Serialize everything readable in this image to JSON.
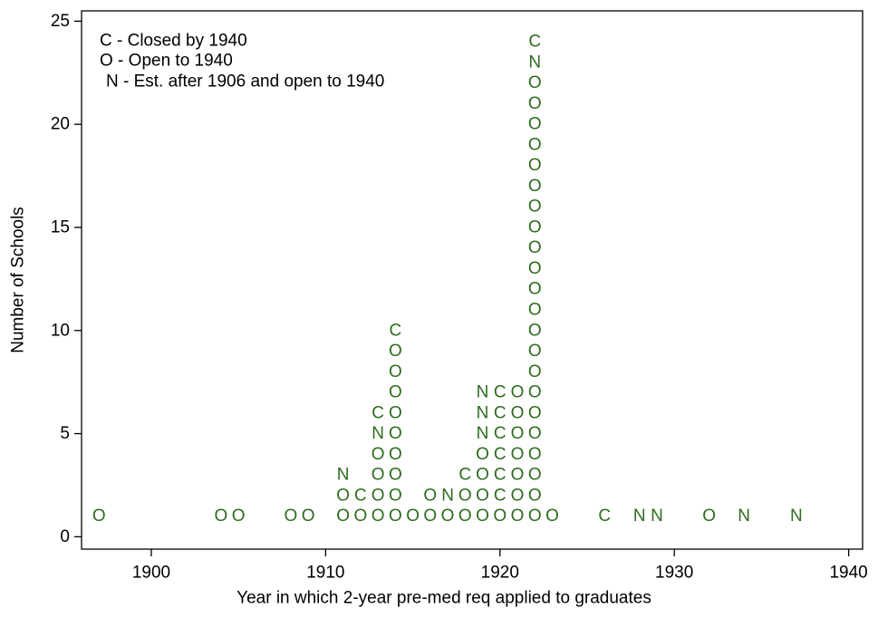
{
  "chart_data": {
    "type": "letter-scatter",
    "xlabel": "Year in which 2-year pre-med req applied to graduates",
    "ylabel": "Number of Schools",
    "annotations": [
      "C - Closed by 1940",
      "O - Open to 1940",
      "N - Est. after 1906 and open to 1940"
    ],
    "color": "#2d6b1f",
    "xlim": [
      1896,
      1940.8
    ],
    "ylim": [
      -0.6,
      25.5
    ],
    "xticks": [
      1900,
      1910,
      1920,
      1930,
      1940
    ],
    "yticks": [
      0,
      5,
      10,
      15,
      20,
      25
    ],
    "series": [
      {
        "marker": "O",
        "x": [
          1897,
          1904,
          1905,
          1908,
          1909,
          1911,
          1911,
          1912,
          1913,
          1913,
          1913,
          1913,
          1914,
          1914,
          1914,
          1914,
          1914,
          1914,
          1914,
          1914,
          1914,
          1915,
          1916,
          1916,
          1917,
          1918,
          1918,
          1919,
          1919,
          1919,
          1919,
          1920,
          1921,
          1921,
          1921,
          1921,
          1921,
          1921,
          1921,
          1922,
          1922,
          1922,
          1922,
          1922,
          1922,
          1922,
          1922,
          1922,
          1922,
          1922,
          1922,
          1922,
          1922,
          1922,
          1922,
          1922,
          1922,
          1922,
          1922,
          1922,
          1922,
          1923,
          1932
        ],
        "values": [
          1,
          1,
          1,
          1,
          1,
          1,
          2,
          1,
          1,
          2,
          3,
          4,
          1,
          2,
          3,
          4,
          5,
          6,
          7,
          8,
          9,
          1,
          1,
          2,
          1,
          1,
          2,
          1,
          2,
          3,
          4,
          1,
          1,
          2,
          3,
          4,
          5,
          6,
          7,
          1,
          2,
          3,
          4,
          5,
          6,
          7,
          8,
          9,
          10,
          11,
          12,
          13,
          14,
          15,
          16,
          17,
          18,
          19,
          20,
          21,
          22,
          1,
          1
        ]
      },
      {
        "marker": "C",
        "x": [
          1912,
          1913,
          1914,
          1918,
          1920,
          1920,
          1920,
          1920,
          1920,
          1920,
          1922,
          1926
        ],
        "values": [
          2,
          6,
          10,
          3,
          2,
          3,
          4,
          5,
          6,
          7,
          24,
          1
        ]
      },
      {
        "marker": "N",
        "x": [
          1911,
          1913,
          1917,
          1919,
          1919,
          1919,
          1922,
          1928,
          1929,
          1934,
          1937
        ],
        "values": [
          3,
          5,
          2,
          5,
          6,
          7,
          23,
          1,
          1,
          1,
          1
        ]
      }
    ]
  }
}
